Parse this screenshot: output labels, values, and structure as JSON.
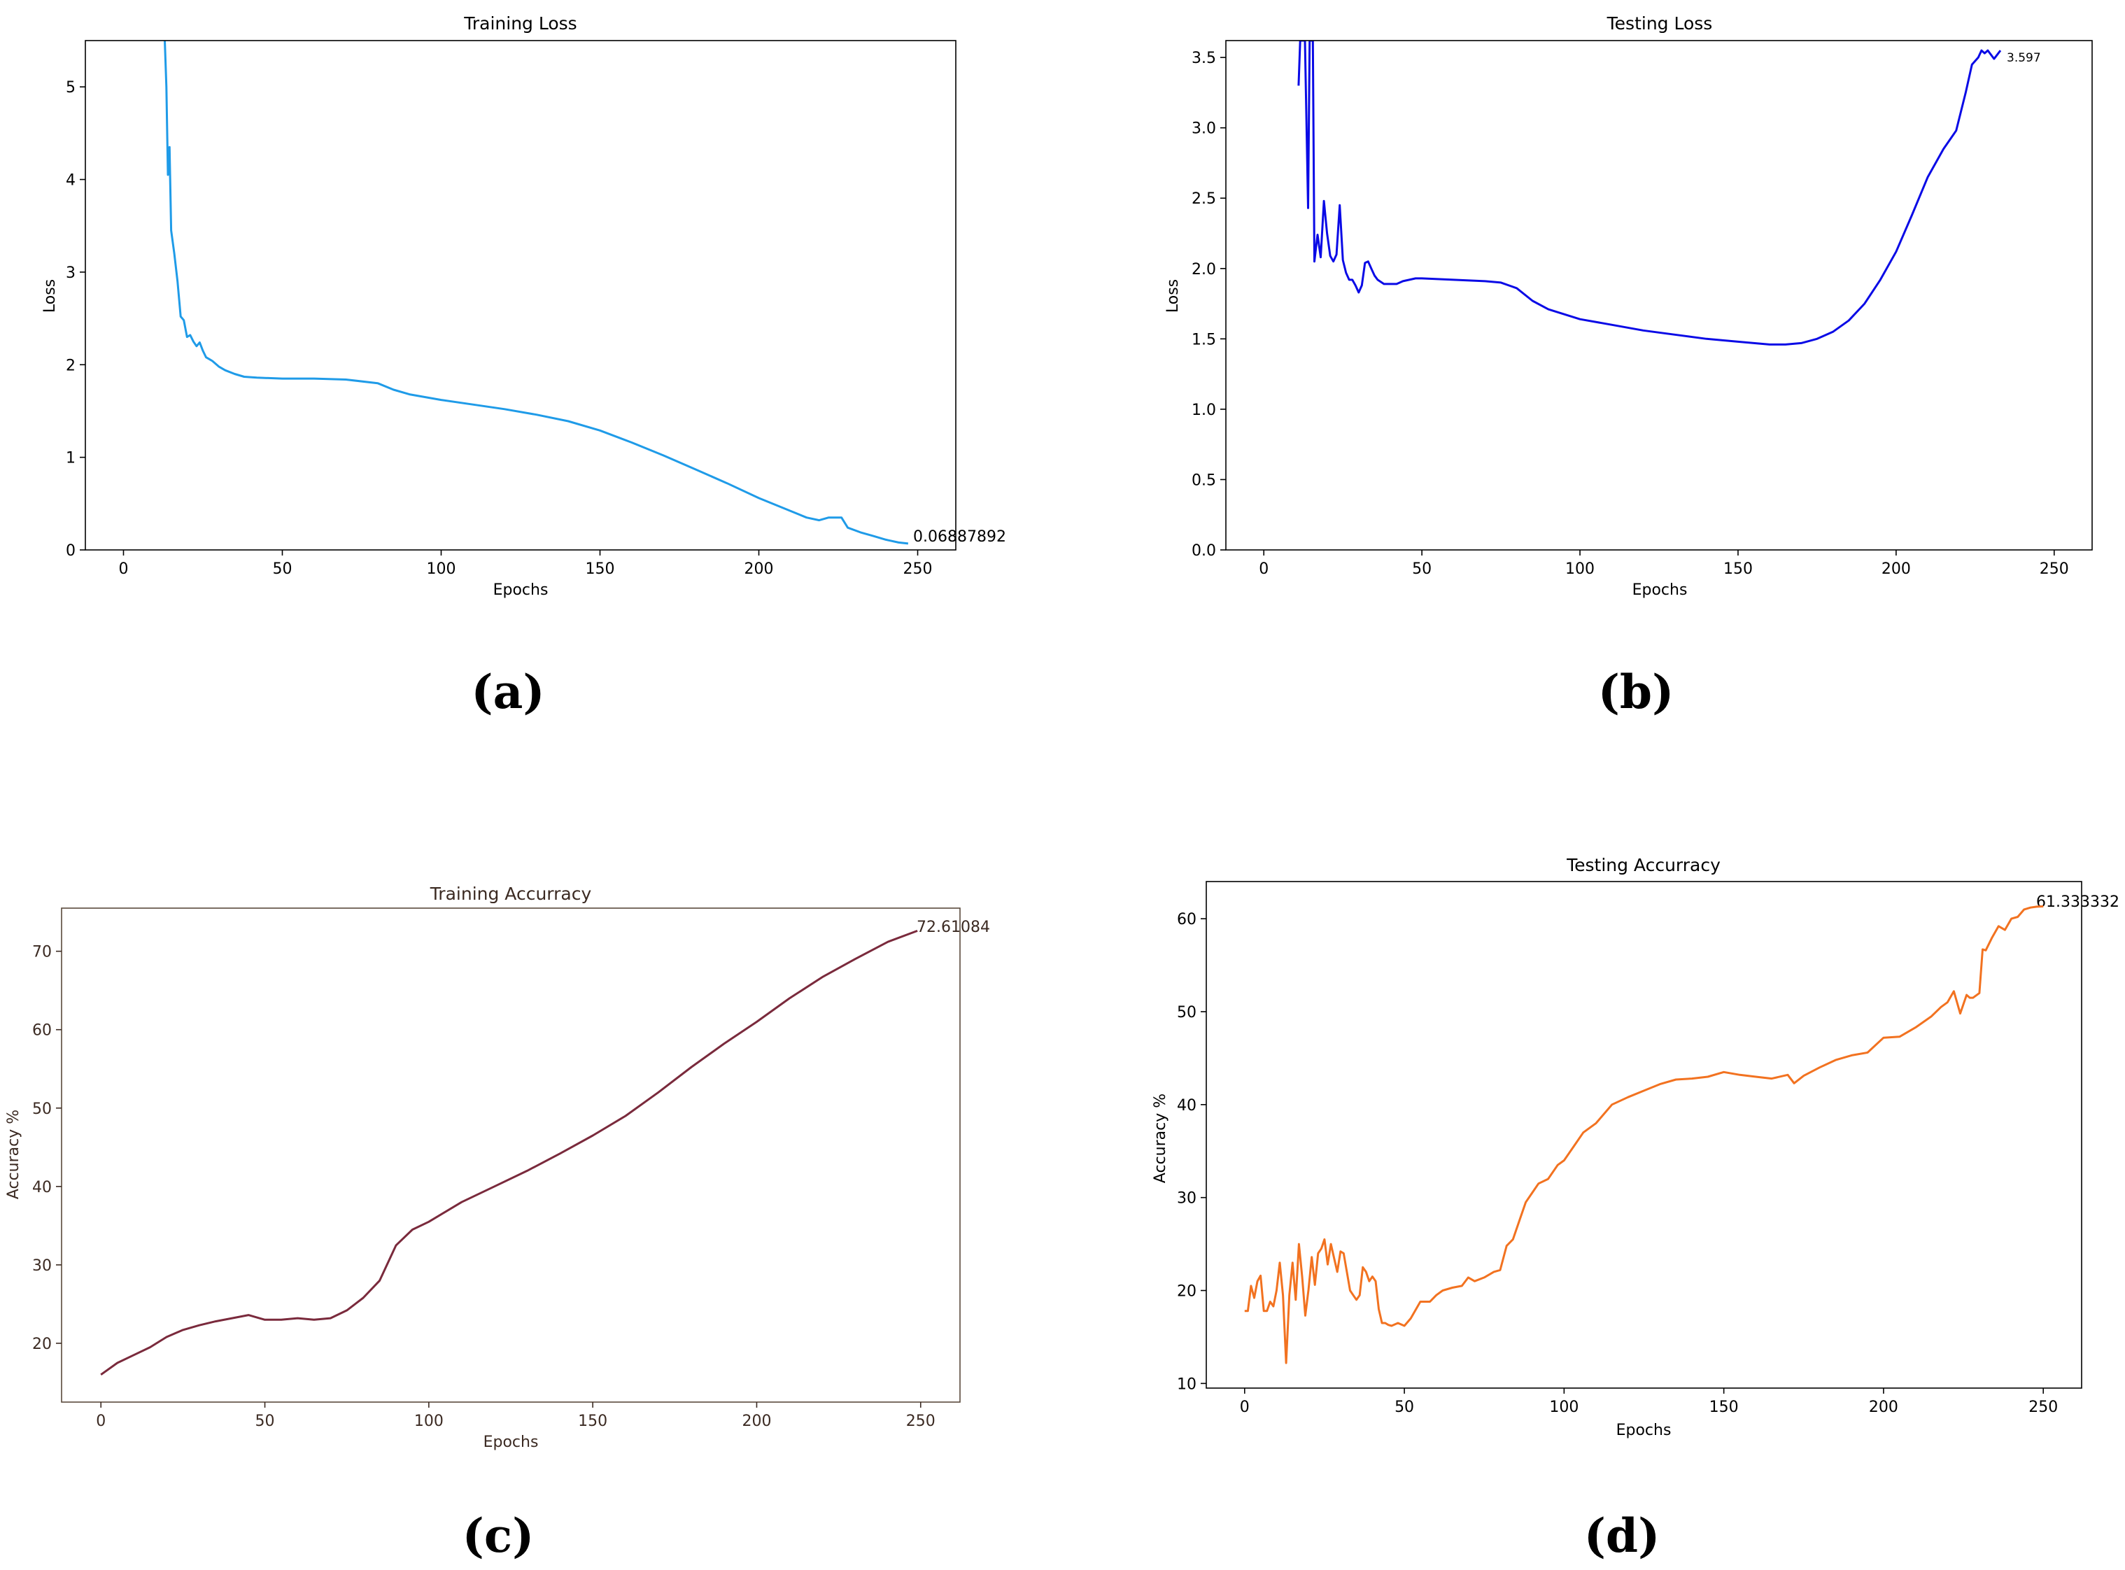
{
  "figure_captions": [
    "(a)",
    "(b)",
    "(c)",
    "(d)"
  ],
  "chart_data": [
    {
      "id": "a",
      "type": "line",
      "title": "Training Loss",
      "xlabel": "Epochs",
      "ylabel": "Loss",
      "xlim": [
        -12,
        262
      ],
      "ylim": [
        0,
        5.5
      ],
      "xticks": [
        0,
        50,
        100,
        150,
        200,
        250
      ],
      "yticks": [
        0,
        1,
        2,
        3,
        4,
        5
      ],
      "ytick_labels": [
        "0",
        "1",
        "2",
        "3",
        "4",
        "5"
      ],
      "grid": false,
      "line_color": "#1f9be8",
      "annotation": "0.06887892",
      "series": [
        {
          "name": "Training Loss",
          "x": [
            13,
            13.5,
            14,
            14.5,
            15,
            16,
            17,
            18,
            19,
            20,
            21,
            22,
            23,
            24,
            25,
            26,
            27,
            28,
            30,
            32,
            35,
            38,
            42,
            50,
            60,
            70,
            80,
            85,
            90,
            100,
            110,
            120,
            130,
            140,
            150,
            160,
            170,
            180,
            190,
            200,
            210,
            215,
            219,
            222,
            226,
            228,
            232,
            236,
            240,
            244,
            247
          ],
          "y": [
            5.5,
            5.0,
            4.05,
            4.35,
            3.45,
            3.2,
            2.9,
            2.52,
            2.48,
            2.3,
            2.32,
            2.25,
            2.2,
            2.24,
            2.15,
            2.08,
            2.06,
            2.04,
            1.98,
            1.94,
            1.9,
            1.87,
            1.86,
            1.85,
            1.85,
            1.84,
            1.8,
            1.73,
            1.68,
            1.62,
            1.57,
            1.52,
            1.46,
            1.39,
            1.29,
            1.16,
            1.02,
            0.87,
            0.72,
            0.56,
            0.42,
            0.35,
            0.32,
            0.35,
            0.35,
            0.24,
            0.19,
            0.15,
            0.11,
            0.08,
            0.069
          ]
        }
      ]
    },
    {
      "id": "b",
      "type": "line",
      "title": "Testing Loss",
      "xlabel": "Epochs",
      "ylabel": "Loss",
      "xlim": [
        -12,
        262
      ],
      "ylim": [
        0,
        3.62
      ],
      "xticks": [
        0,
        50,
        100,
        150,
        200,
        250
      ],
      "yticks": [
        0,
        0.5,
        1.0,
        1.5,
        2.0,
        2.5,
        3.0,
        3.5
      ],
      "ytick_labels": [
        "0.0",
        "0.5",
        "1.0",
        "1.5",
        "2.0",
        "2.5",
        "3.0",
        "3.5"
      ],
      "grid": false,
      "line_color": "#0a0ae6",
      "annotation": "3.597",
      "series": [
        {
          "name": "Testing Loss",
          "x": [
            11,
            11.5,
            12,
            13,
            14,
            14.5,
            15,
            15.5,
            16,
            17,
            18,
            19,
            20,
            21,
            22,
            23,
            24,
            25,
            26,
            27,
            28,
            29,
            30,
            31,
            32,
            33,
            34,
            35,
            36,
            38,
            40,
            42,
            44,
            46,
            48,
            50,
            60,
            70,
            75,
            80,
            85,
            90,
            100,
            110,
            120,
            130,
            140,
            150,
            155,
            160,
            165,
            170,
            175,
            180,
            185,
            190,
            195,
            200,
            205,
            210,
            215,
            219,
            222,
            224,
            226,
            227,
            228,
            229,
            230,
            231,
            232,
            233
          ],
          "y": [
            3.3,
            3.62,
            3.62,
            3.62,
            2.43,
            3.62,
            3.62,
            3.62,
            2.05,
            2.24,
            2.08,
            2.48,
            2.25,
            2.09,
            2.05,
            2.1,
            2.45,
            2.06,
            1.97,
            1.92,
            1.92,
            1.88,
            1.83,
            1.88,
            2.04,
            2.05,
            2.0,
            1.95,
            1.92,
            1.89,
            1.89,
            1.89,
            1.91,
            1.92,
            1.93,
            1.93,
            1.92,
            1.91,
            1.9,
            1.86,
            1.77,
            1.71,
            1.64,
            1.6,
            1.56,
            1.53,
            1.5,
            1.48,
            1.47,
            1.46,
            1.46,
            1.47,
            1.5,
            1.55,
            1.63,
            1.75,
            1.92,
            2.12,
            2.38,
            2.65,
            2.85,
            2.98,
            3.25,
            3.45,
            3.5,
            3.55,
            3.53,
            3.55,
            3.52,
            3.49,
            3.52,
            3.55
          ]
        }
      ]
    },
    {
      "id": "c",
      "type": "line",
      "title": "Training Accurracy",
      "xlabel": "Epochs",
      "ylabel": "Accuracy %",
      "xlim": [
        -12,
        262
      ],
      "ylim": [
        12.5,
        75.5
      ],
      "xticks": [
        0,
        50,
        100,
        150,
        200,
        250
      ],
      "yticks": [
        20,
        30,
        40,
        50,
        60,
        70
      ],
      "ytick_labels": [
        "20",
        "30",
        "40",
        "50",
        "60",
        "70"
      ],
      "grid": false,
      "line_color": "#7a2a3c",
      "annotation": "72.61084",
      "series": [
        {
          "name": "Training Accurracy",
          "x": [
            0,
            5,
            10,
            15,
            20,
            25,
            30,
            35,
            40,
            45,
            50,
            55,
            60,
            65,
            70,
            75,
            80,
            85,
            90,
            95,
            100,
            110,
            120,
            130,
            140,
            150,
            160,
            170,
            180,
            190,
            200,
            210,
            220,
            230,
            240,
            249
          ],
          "y": [
            16,
            17.5,
            18.5,
            19.5,
            20.8,
            21.7,
            22.3,
            22.8,
            23.2,
            23.6,
            23,
            23,
            23.2,
            23,
            23.2,
            24.2,
            25.8,
            28,
            32.5,
            34.5,
            35.5,
            38,
            40,
            42,
            44.2,
            46.5,
            49,
            52,
            55.2,
            58.2,
            61,
            64,
            66.7,
            69,
            71.2,
            72.61
          ]
        }
      ]
    },
    {
      "id": "d",
      "type": "line",
      "title": "Testing Accurracy",
      "xlabel": "Epochs",
      "ylabel": "Accuracy %",
      "xlim": [
        -12,
        262
      ],
      "ylim": [
        9.5,
        64
      ],
      "xticks": [
        0,
        50,
        100,
        150,
        200,
        250
      ],
      "yticks": [
        10,
        20,
        30,
        40,
        50,
        60
      ],
      "ytick_labels": [
        "10",
        "20",
        "30",
        "40",
        "50",
        "60"
      ],
      "grid": false,
      "line_color": "#f27220",
      "annotation": "61.333332",
      "series": [
        {
          "name": "Testing Accurracy",
          "x": [
            0,
            1,
            2,
            3,
            4,
            5,
            6,
            7,
            8,
            9,
            10,
            11,
            12,
            13,
            14,
            15,
            16,
            17,
            18,
            19,
            20,
            21,
            22,
            23,
            24,
            25,
            26,
            27,
            28,
            29,
            30,
            31,
            32,
            33,
            34,
            35,
            36,
            37,
            38,
            39,
            40,
            41,
            42,
            43,
            44,
            45,
            46,
            48,
            50,
            52,
            55,
            58,
            60,
            62,
            65,
            68,
            70,
            72,
            75,
            78,
            80,
            82,
            84,
            86,
            88,
            90,
            92,
            95,
            98,
            100,
            103,
            106,
            110,
            115,
            120,
            125,
            130,
            135,
            140,
            145,
            150,
            155,
            160,
            165,
            170,
            172,
            175,
            180,
            185,
            190,
            195,
            200,
            205,
            210,
            215,
            218,
            220,
            222,
            224,
            226,
            227,
            228,
            230,
            231,
            232,
            234,
            236,
            238,
            240,
            242,
            244,
            246,
            248,
            250
          ],
          "y": [
            17.8,
            17.8,
            20.5,
            19.2,
            21,
            21.6,
            17.8,
            17.8,
            18.8,
            18.3,
            20,
            23,
            19.5,
            12.2,
            19.5,
            23,
            19,
            25,
            21.5,
            17.3,
            20.1,
            23.6,
            20.6,
            24,
            24.5,
            25.5,
            22.8,
            25,
            23.5,
            22,
            24.2,
            24,
            22,
            20,
            19.5,
            19,
            19.5,
            22.5,
            22,
            21,
            21.5,
            21,
            18,
            16.5,
            16.5,
            16.3,
            16.2,
            16.5,
            16.2,
            17,
            18.8,
            18.8,
            19.5,
            20,
            20.3,
            20.5,
            21.4,
            21,
            21.4,
            22,
            22.2,
            24.8,
            25.5,
            27.5,
            29.5,
            30.5,
            31.5,
            32,
            33.5,
            34,
            35.5,
            37,
            38,
            40,
            40.8,
            41.5,
            42.2,
            42.7,
            42.8,
            43,
            43.5,
            43.2,
            43,
            42.8,
            43.2,
            42.3,
            43.1,
            44,
            44.8,
            45.3,
            45.6,
            47.2,
            47.3,
            48.3,
            49.5,
            50.5,
            51,
            52.2,
            49.8,
            51.8,
            51.5,
            51.5,
            52,
            56.7,
            56.6,
            58,
            59.2,
            58.8,
            60,
            60.2,
            61,
            61.2,
            61.3,
            61.33
          ]
        }
      ]
    }
  ]
}
